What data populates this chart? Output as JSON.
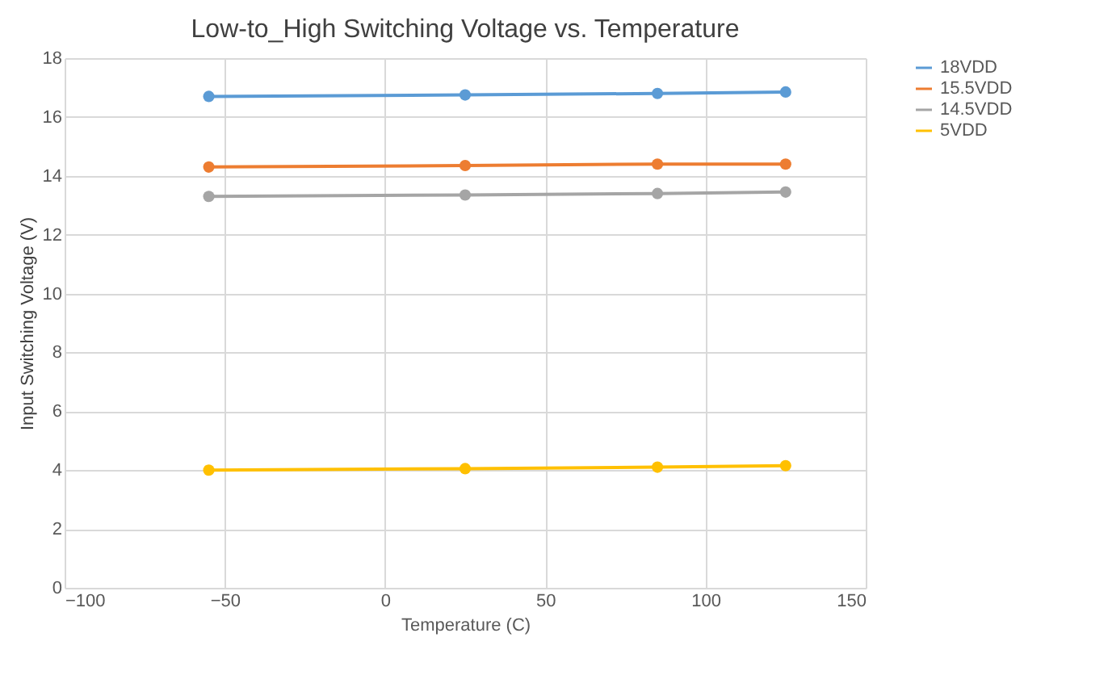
{
  "chart_data": {
    "type": "line",
    "title": "Low-to_High Switching Voltage vs. Temperature",
    "xlabel": "Temperature (C)",
    "ylabel": "Input Switching Voltage (V)",
    "x": [
      -55,
      25,
      85,
      125
    ],
    "series": [
      {
        "name": "18VDD",
        "color": "#5b9bd5",
        "values": [
          16.7,
          16.75,
          16.8,
          16.85
        ]
      },
      {
        "name": "15.5VDD",
        "color": "#ed7d31",
        "values": [
          14.3,
          14.35,
          14.4,
          14.4
        ]
      },
      {
        "name": "14.5VDD",
        "color": "#a5a5a5",
        "values": [
          13.3,
          13.35,
          13.4,
          13.45
        ]
      },
      {
        "name": "5VDD",
        "color": "#ffc000",
        "values": [
          4.0,
          4.05,
          4.1,
          4.15
        ]
      }
    ],
    "xlim": [
      -100,
      150
    ],
    "xticks": [
      -100,
      -50,
      0,
      50,
      100,
      150
    ],
    "ylim": [
      0,
      18
    ],
    "yticks": [
      0,
      2,
      4,
      6,
      8,
      10,
      12,
      14,
      16,
      18
    ],
    "grid": true,
    "legend": "right",
    "marker": "circle",
    "line_style": "solid"
  }
}
